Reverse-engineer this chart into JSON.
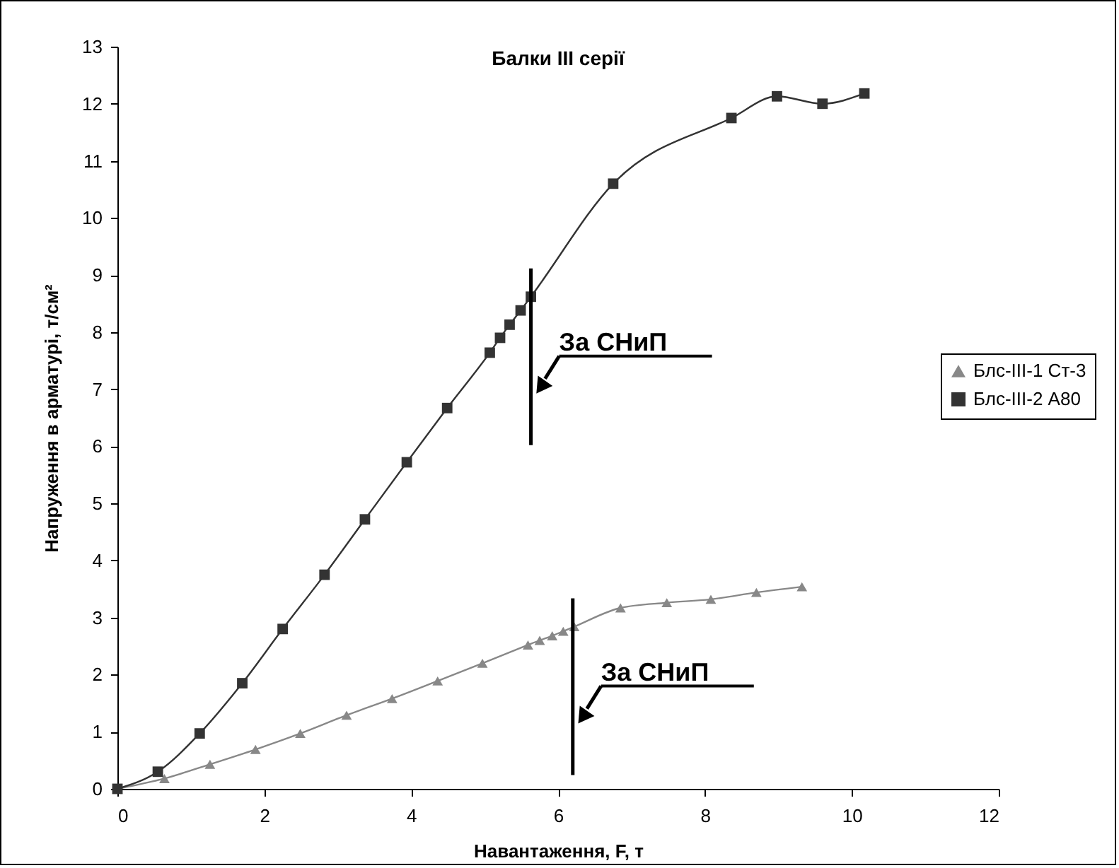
{
  "chart_data": {
    "type": "line",
    "title": "Балки III серії",
    "xlabel": "Навантаження, F, т",
    "ylabel": "Напруження в арматурі, т/см²",
    "xlim": [
      0,
      12
    ],
    "xticks": [
      0,
      2,
      4,
      6,
      8,
      10,
      12
    ],
    "ylim": [
      0,
      13
    ],
    "yticks": [
      0,
      1,
      2,
      3,
      4,
      5,
      6,
      7,
      8,
      9,
      10,
      11,
      12,
      13
    ],
    "grid": false,
    "legend": "right",
    "series": [
      {
        "name": "Блс-III-1 Ст-3",
        "color": "#888888",
        "marker": "triangle",
        "x": [
          0,
          0.64,
          1.26,
          1.88,
          2.49,
          3.12,
          3.74,
          4.36,
          4.97,
          5.59,
          5.75,
          5.92,
          6.07,
          6.22,
          6.85,
          7.48,
          8.08,
          8.7,
          9.32
        ],
        "values": [
          0,
          0.18,
          0.43,
          0.69,
          0.97,
          1.29,
          1.58,
          1.89,
          2.2,
          2.52,
          2.6,
          2.68,
          2.76,
          2.84,
          3.17,
          3.26,
          3.32,
          3.44,
          3.54
        ]
      },
      {
        "name": "Блс-III-2 А80",
        "color": "#333333",
        "marker": "square",
        "x": [
          0,
          0.55,
          1.12,
          1.7,
          2.25,
          2.82,
          3.37,
          3.94,
          4.49,
          5.07,
          5.21,
          5.34,
          5.49,
          5.63,
          6.75,
          8.36,
          8.98,
          9.6,
          10.17
        ],
        "values": [
          0,
          0.3,
          0.97,
          1.85,
          2.8,
          3.75,
          4.72,
          5.72,
          6.67,
          7.64,
          7.9,
          8.13,
          8.38,
          8.62,
          10.6,
          11.75,
          12.13,
          12.0,
          12.18
        ]
      }
    ],
    "ref_lines": [
      {
        "axis": "x",
        "value": 5.63,
        "label": "За СНиП",
        "color": "#000000"
      },
      {
        "axis": "x",
        "value": 6.2,
        "label": "За СНиП",
        "color": "#000000"
      }
    ]
  }
}
